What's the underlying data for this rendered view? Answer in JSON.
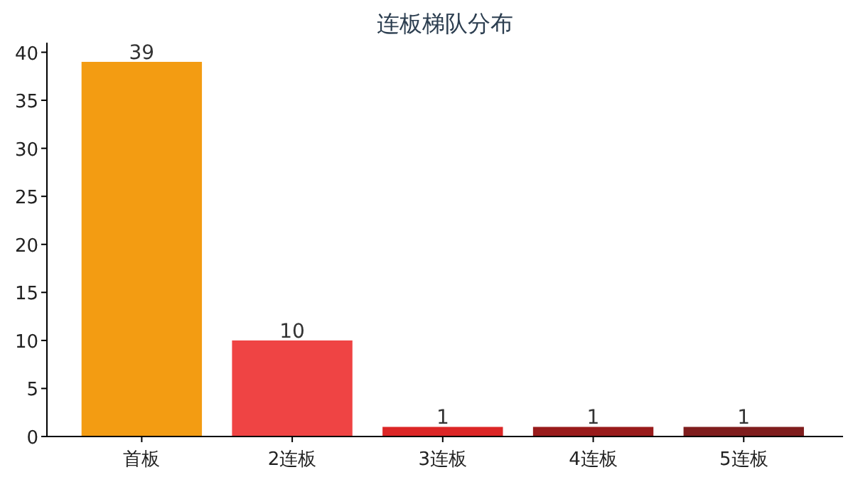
{
  "chart_data": {
    "type": "bar",
    "title": "连板梯队分布",
    "categories": [
      "首板",
      "2连板",
      "3连板",
      "4连板",
      "5连板"
    ],
    "values": [
      39,
      10,
      1,
      1,
      1
    ],
    "colors": [
      "#f39c12",
      "#ef4444",
      "#dc2626",
      "#991b1b",
      "#7f1d1d"
    ],
    "ylim": [
      0,
      41
    ],
    "yticks": [
      0,
      5,
      10,
      15,
      20,
      25,
      30,
      35,
      40
    ],
    "data_labels": true
  }
}
